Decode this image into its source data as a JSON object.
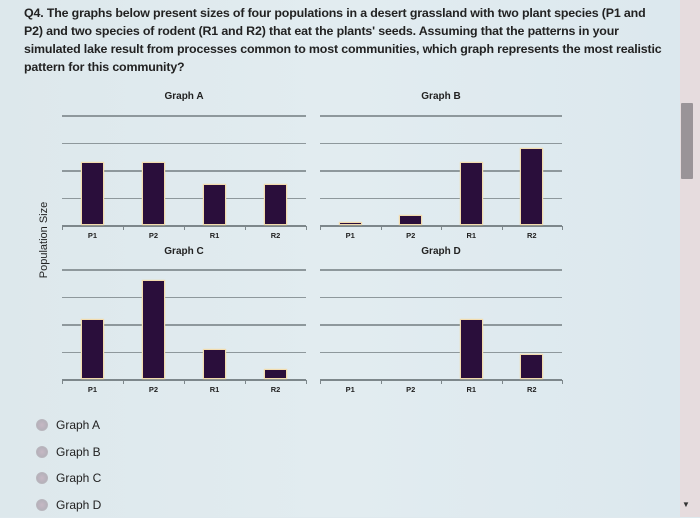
{
  "question": {
    "text": "Q4. The graphs below present sizes of four populations in a desert grassland with two plant species (P1 and P2) and two species of rodent (R1 and R2) that eat the plants' seeds. Assuming that the patterns in your simulated lake result from processes common to most communities, which graph represents the most realistic pattern for this community?"
  },
  "y_axis_label": "Population Size",
  "chart_data": [
    {
      "type": "bar",
      "title": "Graph A",
      "categories": [
        "P1",
        "P2",
        "R1",
        "R2"
      ],
      "values": [
        2.3,
        2.3,
        1.5,
        1.5
      ],
      "xlabel": "",
      "ylabel": "Population Size",
      "ylim": [
        0,
        4
      ],
      "grid": true
    },
    {
      "type": "bar",
      "title": "Graph B",
      "categories": [
        "P1",
        "P2",
        "R1",
        "R2"
      ],
      "values": [
        0.1,
        0.35,
        2.3,
        2.8
      ],
      "xlabel": "",
      "ylabel": "Population Size",
      "ylim": [
        0,
        4
      ],
      "grid": true
    },
    {
      "type": "bar",
      "title": "Graph C",
      "categories": [
        "P1",
        "P2",
        "R1",
        "R2"
      ],
      "values": [
        2.2,
        3.6,
        1.1,
        0.35
      ],
      "xlabel": "",
      "ylabel": "Population Size",
      "ylim": [
        0,
        4
      ],
      "grid": true
    },
    {
      "type": "bar",
      "title": "Graph D",
      "categories": [
        "P1",
        "P2",
        "R1",
        "R2"
      ],
      "values": [
        0,
        0,
        2.2,
        0.9
      ],
      "xlabel": "",
      "ylabel": "Population Size",
      "ylim": [
        0,
        4
      ],
      "grid": true
    }
  ],
  "options": [
    {
      "label": "Graph A",
      "selected": false
    },
    {
      "label": "Graph B",
      "selected": false
    },
    {
      "label": "Graph C",
      "selected": false
    },
    {
      "label": "Graph D",
      "selected": false
    }
  ],
  "colors": {
    "bar": "#2a0e3b",
    "bar_edge": "#f3dcae",
    "grid": "#8e989c",
    "background": "#dfe9ee"
  }
}
